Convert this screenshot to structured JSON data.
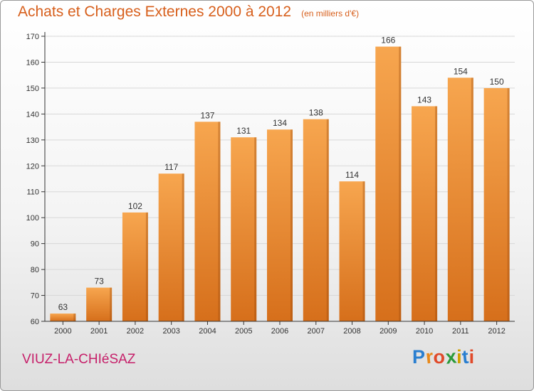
{
  "header": {
    "title": "Achats et Charges Externes 2000 à 2012",
    "subtitle": "(en milliers d'€)"
  },
  "footer": {
    "place_name": "VIUZ-LA-CHIéSAZ",
    "logo_letters": [
      {
        "char": "P",
        "color": "#2a7fd0"
      },
      {
        "char": "r",
        "color": "#e8891a"
      },
      {
        "char": "o",
        "color": "#e04a2a"
      },
      {
        "char": "x",
        "color": "#2a9a3a"
      },
      {
        "char": "i",
        "color": "#d0a000"
      },
      {
        "char": "t",
        "color": "#2a7fd0"
      },
      {
        "char": "i",
        "color": "#e04a2a"
      }
    ]
  },
  "colors": {
    "bar_top": "#f7a64f",
    "bar_bottom": "#d66f1b",
    "title": "#d75f1c",
    "place": "#c6206a",
    "axis": "#333333",
    "grid": "#d8d8d8"
  },
  "chart_data": {
    "type": "bar",
    "categories": [
      "2000",
      "2001",
      "2002",
      "2003",
      "2004",
      "2005",
      "2006",
      "2007",
      "2008",
      "2009",
      "2010",
      "2011",
      "2012"
    ],
    "values": [
      63,
      73,
      102,
      117,
      137,
      131,
      134,
      138,
      114,
      166,
      143,
      154,
      150
    ],
    "ylim": [
      60,
      170
    ],
    "yticks": [
      60,
      70,
      80,
      90,
      100,
      110,
      120,
      130,
      140,
      150,
      160,
      170
    ],
    "grid": true,
    "data_labels": true
  }
}
